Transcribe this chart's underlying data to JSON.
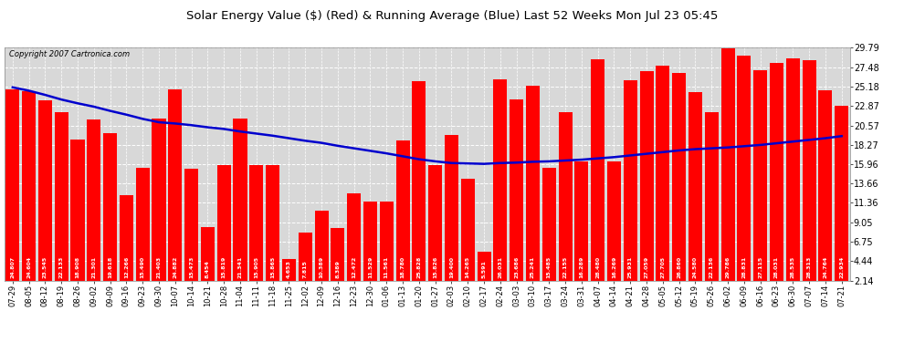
{
  "title": "Solar Energy Value ($) (Red) & Running Average (Blue) Last 52 Weeks Mon Jul 23 05:45",
  "copyright": "Copyright 2007 Cartronica.com",
  "bar_color": "#ff0000",
  "line_color": "#0000cd",
  "background_color": "#ffffff",
  "plot_bg_color": "#d8d8d8",
  "grid_color": "#ffffff",
  "ylim": [
    2.14,
    29.79
  ],
  "yticks": [
    2.14,
    4.44,
    6.75,
    9.05,
    11.36,
    13.66,
    15.96,
    18.27,
    20.57,
    22.87,
    25.18,
    27.48,
    29.79
  ],
  "categories": [
    "07-29",
    "08-05",
    "08-12",
    "08-19",
    "08-26",
    "09-02",
    "09-09",
    "09-16",
    "09-23",
    "09-30",
    "10-07",
    "10-14",
    "10-21",
    "10-28",
    "11-04",
    "11-11",
    "11-18",
    "11-25",
    "12-02",
    "12-09",
    "12-16",
    "12-23",
    "12-30",
    "01-06",
    "01-13",
    "01-20",
    "01-27",
    "02-03",
    "02-10",
    "02-17",
    "02-24",
    "03-03",
    "03-10",
    "03-17",
    "03-24",
    "03-31",
    "04-07",
    "04-14",
    "04-21",
    "04-28",
    "05-05",
    "05-12",
    "05-19",
    "05-26",
    "06-02",
    "06-09",
    "06-16",
    "06-23",
    "06-30",
    "07-07",
    "07-14",
    "07-21"
  ],
  "values": [
    24.807,
    24.604,
    23.545,
    22.133,
    18.908,
    21.301,
    19.618,
    12.266,
    15.49,
    21.403,
    24.882,
    15.473,
    8.454,
    15.819,
    21.341,
    15.905,
    15.865,
    4.653,
    7.815,
    10.389,
    8.389,
    12.472,
    11.529,
    11.561,
    18.78,
    25.828,
    15.826,
    19.4,
    14.265,
    5.591,
    26.031,
    23.686,
    25.241,
    15.485,
    22.155,
    16.289,
    28.48,
    16.269,
    25.931,
    27.059,
    27.705,
    26.86,
    24.58,
    22.136,
    29.786,
    28.831,
    27.115,
    28.031,
    28.535,
    28.313,
    24.764,
    22.934
  ],
  "running_avg": [
    25.1,
    24.7,
    24.2,
    23.65,
    23.2,
    22.8,
    22.3,
    21.85,
    21.35,
    20.95,
    20.8,
    20.6,
    20.35,
    20.15,
    19.85,
    19.6,
    19.35,
    19.05,
    18.75,
    18.5,
    18.15,
    17.85,
    17.55,
    17.25,
    16.9,
    16.55,
    16.3,
    16.1,
    16.05,
    16.0,
    16.1,
    16.15,
    16.25,
    16.3,
    16.4,
    16.5,
    16.65,
    16.8,
    17.0,
    17.2,
    17.4,
    17.6,
    17.75,
    17.85,
    17.95,
    18.1,
    18.25,
    18.45,
    18.65,
    18.85,
    19.05,
    19.3
  ]
}
